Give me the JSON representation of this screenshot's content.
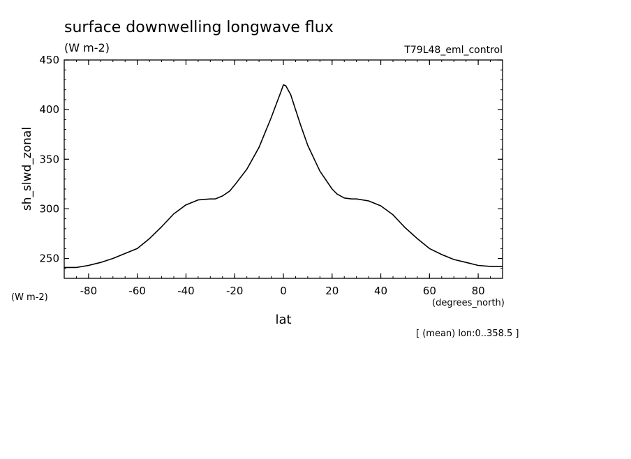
{
  "chart_data": {
    "type": "line",
    "title": "surface downwelling longwave flux",
    "units_label": "(W m-2)",
    "dataset_label": "T79L48_eml_control",
    "xlabel": "lat",
    "x_units_label": "(degrees_north)",
    "ylabel": "sh_slwd_zonal",
    "y_units_label": "(W m-2)",
    "footnote": "[ (mean) lon:0..358.5 ]",
    "xlim": [
      -90,
      90
    ],
    "ylim": [
      230,
      450
    ],
    "x_ticks": [
      -80,
      -60,
      -40,
      -20,
      0,
      20,
      40,
      60,
      80
    ],
    "x_tick_labels": [
      "-80",
      "-60",
      "-40",
      "-20",
      "0",
      "20",
      "40",
      "60",
      "80"
    ],
    "y_ticks": [
      250,
      300,
      350,
      400,
      450
    ],
    "y_tick_labels": [
      "250",
      "300",
      "350",
      "400",
      "450"
    ],
    "grid": false,
    "series": [
      {
        "name": "",
        "x": [
          -90,
          -85,
          -80,
          -75,
          -70,
          -65,
          -60,
          -55,
          -50,
          -45,
          -40,
          -35,
          -30,
          -28,
          -25,
          -22,
          -20,
          -15,
          -10,
          -7,
          -5,
          -3,
          -1,
          0,
          1,
          3,
          5,
          7,
          10,
          15,
          20,
          22,
          25,
          28,
          30,
          35,
          40,
          45,
          50,
          55,
          60,
          65,
          70,
          75,
          80,
          85,
          90
        ],
        "y": [
          241,
          241,
          243,
          246,
          250,
          255,
          260,
          270,
          282,
          295,
          304,
          309,
          310,
          310,
          313,
          318,
          324,
          340,
          362,
          380,
          392,
          405,
          418,
          425,
          424,
          415,
          400,
          385,
          364,
          338,
          320,
          315,
          311,
          310,
          310,
          308,
          303,
          294,
          281,
          270,
          260,
          254,
          249,
          246,
          243,
          242,
          242
        ]
      }
    ]
  }
}
